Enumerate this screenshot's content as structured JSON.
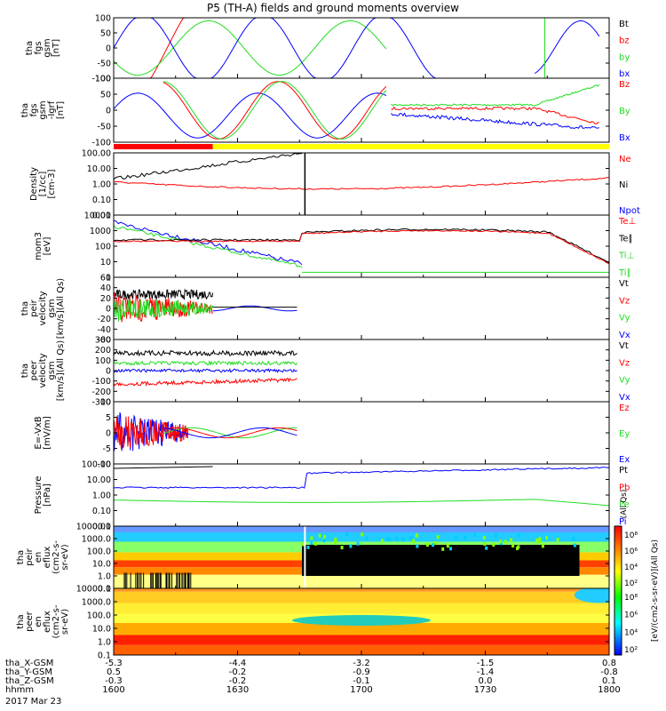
{
  "title": "P5 (TH-A) fields and ground moments overview",
  "colors": {
    "black": "#000000",
    "red": "#ff0000",
    "green": "#22dd22",
    "blue": "#0000ff",
    "yellow": "#ffff00"
  },
  "time_axis": {
    "ticks": [
      "1600",
      "1630",
      "1700",
      "1730",
      "1800"
    ],
    "row_labels": [
      "tha_X-GSM",
      "tha_Y-GSM",
      "tha_Z-GSM",
      "hhmm"
    ],
    "x_gsm": [
      "-5.3",
      "-4.4",
      "-3.2",
      "-1.5",
      "0.8"
    ],
    "y_gsm": [
      "0.5",
      "-0.2",
      "-0.9",
      "-1.4",
      "-0.8"
    ],
    "z_gsm": [
      "-0.3",
      "-0.2",
      "-0.1",
      "0.0",
      "0.1"
    ],
    "date": "2017 Mar 23"
  },
  "chart_data": [
    {
      "type": "line",
      "id": "p1",
      "ylabel": [
        "tha",
        "fgs",
        "gsm",
        "[nT]"
      ],
      "ticks": [
        "100",
        "50",
        "0",
        "-50",
        "-100"
      ],
      "ylim": [
        -100,
        100
      ],
      "legend": [
        {
          "label": "Bt",
          "color": "#000000"
        },
        {
          "label": "bz",
          "color": "#ff0000"
        },
        {
          "label": "by",
          "color": "#22dd22"
        },
        {
          "label": "bx",
          "color": "#0000ff"
        }
      ]
    },
    {
      "type": "line",
      "id": "p2",
      "ylabel": [
        "tha",
        "fgs",
        "gsm",
        "-Igrf",
        "[nT]"
      ],
      "ticks": [
        "100",
        "50",
        "0",
        "-50",
        "-100"
      ],
      "ylim": [
        -120,
        100
      ],
      "legend": [
        {
          "label": "Bz",
          "color": "#ff0000"
        },
        {
          "label": "By",
          "color": "#22dd22"
        },
        {
          "label": "Bx",
          "color": "#0000ff"
        }
      ]
    },
    {
      "type": "bar",
      "id": "bar",
      "segments": [
        {
          "from": 1600,
          "to": 1640,
          "color": "#ff0000"
        },
        {
          "from": 1640,
          "to": 1800,
          "color": "#ffff00"
        }
      ]
    },
    {
      "type": "line",
      "id": "p3",
      "ylabel": [
        "Density",
        "[1/cc]",
        "[cm-3]"
      ],
      "scale": "log",
      "ticks": [
        "100.00",
        "10.00",
        "1.00",
        "0.10",
        "0.01"
      ],
      "legend": [
        {
          "label": "Ne",
          "color": "#ff0000"
        },
        {
          "label": "Ni",
          "color": "#000000"
        },
        {
          "label": "Npot",
          "color": "#0000ff"
        }
      ]
    },
    {
      "type": "line",
      "id": "p4",
      "ylabel": [
        "mom3",
        "[eV]"
      ],
      "scale": "log",
      "ticks": [
        "10000",
        "1000",
        "100",
        "10",
        "1"
      ],
      "legend": [
        {
          "label": "Te⊥",
          "color": "#ff0000"
        },
        {
          "label": "Te∥",
          "color": "#000000"
        },
        {
          "label": "Ti⊥",
          "color": "#22dd22"
        },
        {
          "label": "Ti∥",
          "color": "#22dd22"
        }
      ]
    },
    {
      "type": "line",
      "id": "p5",
      "ylabel": [
        "tha",
        "peir",
        "velocity",
        "gsm",
        "[km/s](All Qs)"
      ],
      "ticks": [
        "60",
        "40",
        "20",
        "0",
        "-20",
        "-40",
        "-60"
      ],
      "ylim": [
        -60,
        60
      ],
      "legend": [
        {
          "label": "Vt",
          "color": "#000000"
        },
        {
          "label": "Vz",
          "color": "#ff0000"
        },
        {
          "label": "Vy",
          "color": "#22dd22"
        },
        {
          "label": "Vx",
          "color": "#0000ff"
        }
      ]
    },
    {
      "type": "line",
      "id": "p6",
      "ylabel": [
        "tha",
        "peer",
        "velocity",
        "gsm",
        "[km/s](All Qs)"
      ],
      "ticks": [
        "300",
        "200",
        "100",
        "0",
        "-100",
        "-200",
        "-300"
      ],
      "ylim": [
        -300,
        300
      ],
      "legend": [
        {
          "label": "Vt",
          "color": "#000000"
        },
        {
          "label": "Vz",
          "color": "#ff0000"
        },
        {
          "label": "Vy",
          "color": "#22dd22"
        },
        {
          "label": "Vx",
          "color": "#0000ff"
        }
      ]
    },
    {
      "type": "line",
      "id": "p7",
      "ylabel": [
        "E=-VxB",
        "[mV/m]"
      ],
      "ticks": [
        "10",
        "5",
        "0",
        "-5",
        "-10"
      ],
      "ylim": [
        -10,
        10
      ],
      "legend": [
        {
          "label": "Ez",
          "color": "#ff0000"
        },
        {
          "label": "Ey",
          "color": "#22dd22"
        },
        {
          "label": "Ex",
          "color": "#0000ff"
        }
      ]
    },
    {
      "type": "line",
      "id": "p8",
      "ylabel": [
        "Pressure",
        "[nPa]"
      ],
      "scale": "log",
      "ticks": [
        "100.00",
        "10.00",
        "1.00",
        "0.10",
        "0.01"
      ],
      "legend": [
        {
          "label": "Pt",
          "color": "#000000"
        },
        {
          "label": "Pb",
          "color": "#ff0000"
        },
        {
          "label": "Pe",
          "color": "#22dd22"
        },
        {
          "label": "Pi",
          "color": "#0000ff"
        }
      ],
      "side_note": "(All Qs)"
    },
    {
      "type": "heatmap",
      "id": "p9",
      "ylabel": [
        "tha",
        "peir",
        "en",
        "eflux",
        "(cm2-s-",
        "sr-eV)"
      ],
      "ticks": [
        "10000.0",
        "1000.0",
        "100.0",
        "10.0",
        "1.0",
        "0.1"
      ]
    },
    {
      "type": "heatmap",
      "id": "p10",
      "ylabel": [
        "tha",
        "peer",
        "en",
        "eflux",
        "(cm2-s-",
        "sr-eV)"
      ],
      "ticks": [
        "10000.0",
        "1000.0",
        "100.0",
        "10.0",
        "1.0",
        "0.1"
      ]
    }
  ],
  "colorbar": {
    "label": "[eV/(cm2-s-sr-eV)](All Qs)",
    "ticks": [
      "10⁸",
      "10⁶",
      "10⁴",
      "10²"
    ]
  }
}
